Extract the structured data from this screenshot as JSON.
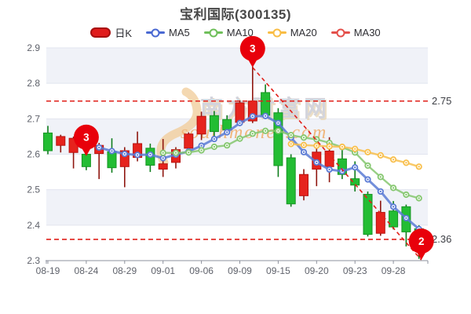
{
  "chart_data": {
    "type": "candlestick",
    "title": "宝利国际(300135)",
    "y_axis": {
      "min": 2.3,
      "max": 2.9,
      "ticks": [
        2.3,
        2.4,
        2.5,
        2.6,
        2.7,
        2.8,
        2.9
      ]
    },
    "x_axis": {
      "labels": [
        "08-19",
        "08-24",
        "08-29",
        "09-01",
        "09-06",
        "09-09",
        "09-15",
        "09-20",
        "09-23",
        "09-28"
      ],
      "label_indices": [
        0,
        3,
        6,
        9,
        12,
        15,
        18,
        21,
        24,
        27
      ]
    },
    "candles": [
      {
        "o": 2.66,
        "c": 2.61,
        "l": 2.6,
        "h": 2.68
      },
      {
        "o": 2.625,
        "c": 2.65,
        "l": 2.605,
        "h": 2.655
      },
      {
        "o": 2.605,
        "c": 2.645,
        "l": 2.56,
        "h": 2.65
      },
      {
        "o": 2.6,
        "c": 2.565,
        "l": 2.555,
        "h": 2.64
      },
      {
        "o": 2.602,
        "c": 2.625,
        "l": 2.53,
        "h": 2.632
      },
      {
        "o": 2.607,
        "c": 2.562,
        "l": 2.548,
        "h": 2.645
      },
      {
        "o": 2.565,
        "c": 2.61,
        "l": 2.507,
        "h": 2.62
      },
      {
        "o": 2.591,
        "c": 2.63,
        "l": 2.58,
        "h": 2.664
      },
      {
        "o": 2.617,
        "c": 2.569,
        "l": 2.55,
        "h": 2.63
      },
      {
        "o": 2.558,
        "c": 2.573,
        "l": 2.536,
        "h": 2.643
      },
      {
        "o": 2.577,
        "c": 2.613,
        "l": 2.56,
        "h": 2.62
      },
      {
        "o": 2.617,
        "c": 2.657,
        "l": 2.6,
        "h": 2.662
      },
      {
        "o": 2.657,
        "c": 2.707,
        "l": 2.64,
        "h": 2.72
      },
      {
        "o": 2.709,
        "c": 2.664,
        "l": 2.65,
        "h": 2.722
      },
      {
        "o": 2.698,
        "c": 2.669,
        "l": 2.658,
        "h": 2.71
      },
      {
        "o": 2.69,
        "c": 2.745,
        "l": 2.68,
        "h": 2.752
      },
      {
        "o": 2.694,
        "c": 2.75,
        "l": 2.688,
        "h": 2.847
      },
      {
        "o": 2.774,
        "c": 2.71,
        "l": 2.7,
        "h": 2.797
      },
      {
        "o": 2.717,
        "c": 2.568,
        "l": 2.536,
        "h": 2.73
      },
      {
        "o": 2.59,
        "c": 2.46,
        "l": 2.452,
        "h": 2.6
      },
      {
        "o": 2.483,
        "c": 2.543,
        "l": 2.47,
        "h": 2.558
      },
      {
        "o": 2.558,
        "c": 2.606,
        "l": 2.51,
        "h": 2.618
      },
      {
        "o": 2.565,
        "c": 2.609,
        "l": 2.521,
        "h": 2.648
      },
      {
        "o": 2.587,
        "c": 2.543,
        "l": 2.53,
        "h": 2.613
      },
      {
        "o": 2.531,
        "c": 2.513,
        "l": 2.495,
        "h": 2.58
      },
      {
        "o": 2.487,
        "c": 2.374,
        "l": 2.368,
        "h": 2.495
      },
      {
        "o": 2.377,
        "c": 2.436,
        "l": 2.37,
        "h": 2.469
      },
      {
        "o": 2.44,
        "c": 2.395,
        "l": 2.388,
        "h": 2.468
      },
      {
        "o": 2.452,
        "c": 2.381,
        "l": 2.34,
        "h": 2.458
      },
      {
        "o": 2.39,
        "c": 2.36,
        "l": 2.305,
        "h": 2.4
      }
    ],
    "series": [
      {
        "id": "ma5",
        "name": "MA5",
        "color": "#5b7bd5",
        "values": [
          null,
          null,
          null,
          null,
          2.619,
          2.609,
          2.601,
          2.598,
          2.599,
          2.589,
          2.599,
          2.608,
          2.624,
          2.643,
          2.662,
          2.688,
          2.707,
          2.708,
          2.688,
          2.647,
          2.606,
          2.577,
          2.557,
          2.552,
          2.563,
          2.529,
          2.495,
          2.452,
          2.42,
          2.389
        ]
      },
      {
        "id": "ma10",
        "name": "MA10",
        "color": "#85c76f",
        "values": [
          null,
          null,
          null,
          null,
          null,
          null,
          null,
          null,
          null,
          2.604,
          2.604,
          2.605,
          2.611,
          2.621,
          2.625,
          2.644,
          2.658,
          2.666,
          2.666,
          2.654,
          2.647,
          2.642,
          2.632,
          2.62,
          2.605,
          2.568,
          2.536,
          2.505,
          2.486,
          2.476
        ]
      },
      {
        "id": "ma20",
        "name": "MA20",
        "color": "#f8bf4c",
        "values": [
          null,
          null,
          null,
          null,
          null,
          null,
          null,
          null,
          null,
          null,
          null,
          null,
          null,
          null,
          null,
          null,
          null,
          null,
          null,
          2.629,
          2.626,
          2.624,
          2.622,
          2.621,
          2.615,
          2.606,
          2.597,
          2.585,
          2.576,
          2.565
        ]
      },
      {
        "id": "ma30",
        "name": "MA30",
        "color": "#e8544a",
        "values": [
          null,
          null,
          null,
          null,
          null,
          null,
          null,
          null,
          null,
          null,
          null,
          null,
          null,
          null,
          null,
          null,
          null,
          null,
          null,
          null,
          null,
          null,
          null,
          null,
          null,
          null,
          null,
          null,
          null,
          null
        ]
      }
    ],
    "legend": [
      {
        "id": "daily-k",
        "label": "日K",
        "type": "rect",
        "color": "#e01b1b",
        "border": "#a80f0f"
      },
      {
        "id": "ma5",
        "label": "MA5",
        "type": "line",
        "color": "#4a69d2"
      },
      {
        "id": "ma10",
        "label": "MA10",
        "type": "line",
        "color": "#6fbf5a"
      },
      {
        "id": "ma20",
        "label": "MA20",
        "type": "line",
        "color": "#f9bd45"
      },
      {
        "id": "ma30",
        "label": "MA30",
        "type": "line",
        "color": "#e4504b"
      }
    ],
    "hlines": [
      {
        "value": 2.75,
        "label": "2.75"
      },
      {
        "value": 2.36,
        "label": "2.36"
      }
    ],
    "trendline": {
      "from_index": 16,
      "from_price": 2.845,
      "to_index": 29,
      "to_price": 2.302
    },
    "markers": [
      {
        "label": "3",
        "index": 3,
        "tip_price": 2.595,
        "dx": 0
      },
      {
        "label": "3",
        "index": 16,
        "tip_price": 2.845,
        "dx": 0
      },
      {
        "label": "2",
        "index": 29,
        "tip_price": 2.302,
        "dx": 3
      }
    ],
    "watermark": {
      "text": "南方财富网",
      "script": "southmoney.com"
    },
    "colors": {
      "up_fill": "#e6231d",
      "up_border": "#b8120e",
      "up_wick": "#8f1710",
      "down_fill": "#23bd33",
      "down_border": "#169523",
      "down_wick": "#0e7d1c",
      "band": "#f0f2f8",
      "grid": "#e2e5ef",
      "axis_line": "#8d919c",
      "axis_text": "#5f626b",
      "price_label": "#3d3f45",
      "dashed": "#e1201a",
      "balloon": "#e8000b",
      "wm_swoosh": "#f2cf9e",
      "wm_text": "#c9cad4",
      "wm_shadow": "#e8d7b8",
      "wm_script": "#f0a85e"
    }
  }
}
